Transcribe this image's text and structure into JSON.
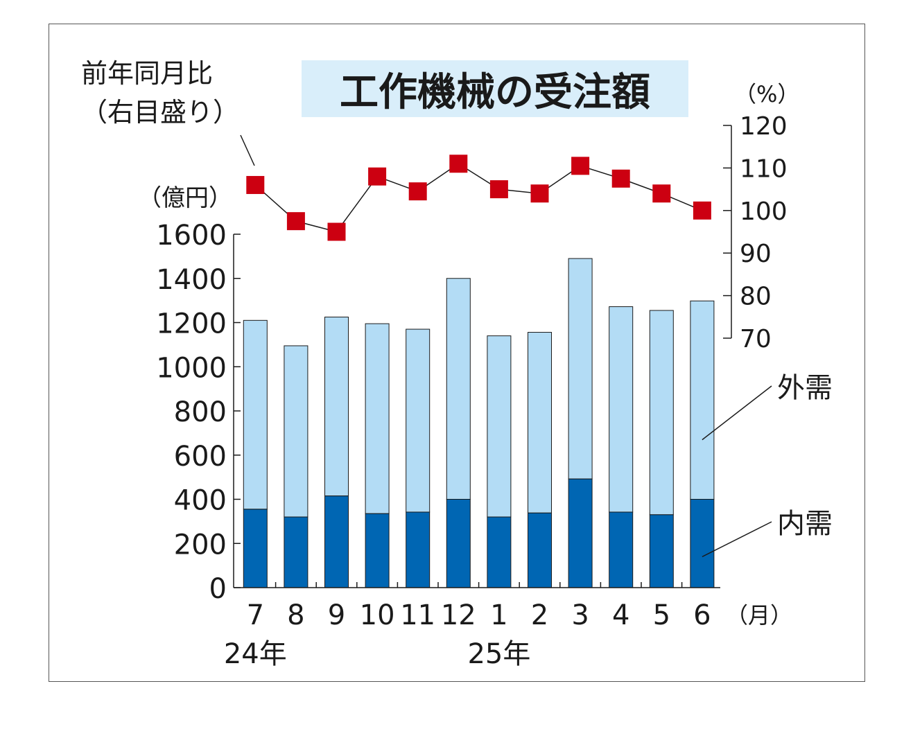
{
  "chart_data": {
    "type": "bar",
    "title": "工作機械の受注額",
    "stacked": true,
    "categories": [
      "7",
      "8",
      "9",
      "10",
      "11",
      "12",
      "1",
      "2",
      "3",
      "4",
      "5",
      "6"
    ],
    "x_unit": "（月）",
    "year_labels": [
      {
        "label": "24年",
        "category": "7"
      },
      {
        "label": "25年",
        "category": "1"
      }
    ],
    "series": [
      {
        "name": "内需",
        "values": [
          355,
          320,
          415,
          335,
          342,
          400,
          320,
          338,
          492,
          342,
          330,
          400
        ],
        "color": "#0066b3"
      },
      {
        "name": "外需",
        "values": [
          855,
          775,
          810,
          860,
          828,
          1000,
          820,
          818,
          998,
          930,
          925,
          898
        ],
        "color": "#b3dcf5"
      }
    ],
    "y_left": {
      "unit": "（億円）",
      "range": [
        0,
        1600
      ],
      "ticks": [
        0,
        200,
        400,
        600,
        800,
        1000,
        1200,
        1400,
        1600
      ]
    },
    "yoy": {
      "label_line1": "前年同月比",
      "label_line2": "（右目盛り）",
      "values": [
        106,
        97.5,
        95,
        108,
        104.5,
        111,
        105,
        104,
        110.5,
        107.5,
        104,
        100
      ],
      "color": "#cc0011"
    },
    "y_right": {
      "unit": "（%）",
      "range": [
        70,
        120
      ],
      "ticks": [
        70,
        80,
        90,
        100,
        110,
        120
      ]
    },
    "grid": false,
    "title_background": "#d9eefa"
  }
}
